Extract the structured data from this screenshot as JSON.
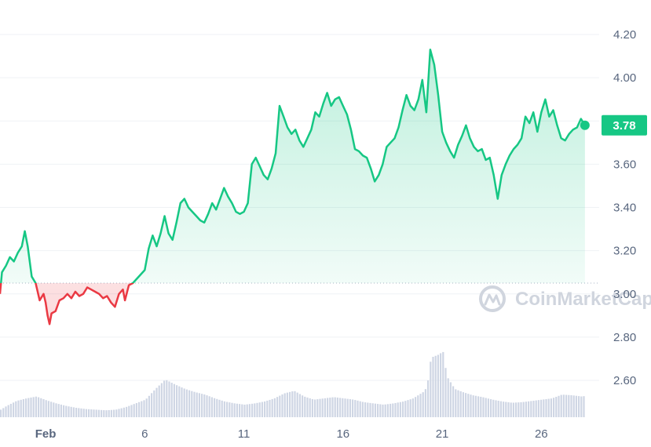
{
  "chart_data": {
    "type": "area",
    "watermark": "CoinMarketCap",
    "current_price_label": "3.78",
    "baseline": 3.05,
    "ylim": [
      2.45,
      4.3
    ],
    "y_ticks": [
      "4.20",
      "4.00",
      "3.80",
      "3.60",
      "3.40",
      "3.20",
      "3.00",
      "2.80",
      "2.60"
    ],
    "y_tick_values": [
      4.2,
      4.0,
      3.8,
      3.6,
      3.4,
      3.2,
      3.0,
      2.8,
      2.6
    ],
    "x_ticks": [
      "Feb",
      "6",
      "11",
      "16",
      "21",
      "26"
    ],
    "x_tick_days": [
      1,
      6,
      11,
      16,
      21,
      26
    ],
    "x_range_days": [
      -1.3,
      28.8
    ],
    "colors": {
      "up": "#16c784",
      "down": "#ea3943",
      "volume": "#cfd6e4",
      "dot": "#16c784"
    },
    "price_series": [
      [
        -1.3,
        3.0
      ],
      [
        -1.2,
        3.1
      ],
      [
        -1.0,
        3.13
      ],
      [
        -0.8,
        3.17
      ],
      [
        -0.6,
        3.15
      ],
      [
        -0.4,
        3.19
      ],
      [
        -0.2,
        3.22
      ],
      [
        -0.05,
        3.29
      ],
      [
        0.1,
        3.22
      ],
      [
        0.3,
        3.08
      ],
      [
        0.5,
        3.05
      ],
      [
        0.7,
        2.97
      ],
      [
        0.9,
        3.0
      ],
      [
        1.0,
        2.96
      ],
      [
        1.1,
        2.9
      ],
      [
        1.2,
        2.86
      ],
      [
        1.3,
        2.91
      ],
      [
        1.5,
        2.92
      ],
      [
        1.7,
        2.97
      ],
      [
        1.9,
        2.98
      ],
      [
        2.1,
        3.0
      ],
      [
        2.3,
        2.98
      ],
      [
        2.5,
        3.01
      ],
      [
        2.7,
        2.99
      ],
      [
        2.9,
        3.0
      ],
      [
        3.1,
        3.03
      ],
      [
        3.3,
        3.02
      ],
      [
        3.5,
        3.01
      ],
      [
        3.7,
        3.0
      ],
      [
        3.9,
        2.98
      ],
      [
        4.1,
        2.99
      ],
      [
        4.3,
        2.96
      ],
      [
        4.5,
        2.94
      ],
      [
        4.7,
        3.0
      ],
      [
        4.9,
        3.02
      ],
      [
        5.0,
        2.97
      ],
      [
        5.2,
        3.04
      ],
      [
        5.4,
        3.05
      ],
      [
        5.6,
        3.07
      ],
      [
        5.8,
        3.09
      ],
      [
        6.0,
        3.11
      ],
      [
        6.2,
        3.21
      ],
      [
        6.4,
        3.27
      ],
      [
        6.6,
        3.22
      ],
      [
        6.8,
        3.28
      ],
      [
        7.0,
        3.36
      ],
      [
        7.2,
        3.28
      ],
      [
        7.4,
        3.25
      ],
      [
        7.6,
        3.33
      ],
      [
        7.8,
        3.42
      ],
      [
        8.0,
        3.44
      ],
      [
        8.2,
        3.4
      ],
      [
        8.4,
        3.38
      ],
      [
        8.6,
        3.36
      ],
      [
        8.8,
        3.34
      ],
      [
        9.0,
        3.33
      ],
      [
        9.2,
        3.37
      ],
      [
        9.4,
        3.42
      ],
      [
        9.6,
        3.39
      ],
      [
        9.8,
        3.44
      ],
      [
        10.0,
        3.49
      ],
      [
        10.2,
        3.45
      ],
      [
        10.4,
        3.42
      ],
      [
        10.6,
        3.38
      ],
      [
        10.8,
        3.37
      ],
      [
        11.0,
        3.38
      ],
      [
        11.2,
        3.42
      ],
      [
        11.4,
        3.6
      ],
      [
        11.6,
        3.63
      ],
      [
        11.8,
        3.59
      ],
      [
        12.0,
        3.55
      ],
      [
        12.2,
        3.53
      ],
      [
        12.4,
        3.58
      ],
      [
        12.6,
        3.65
      ],
      [
        12.8,
        3.87
      ],
      [
        13.0,
        3.82
      ],
      [
        13.2,
        3.77
      ],
      [
        13.4,
        3.74
      ],
      [
        13.6,
        3.76
      ],
      [
        13.8,
        3.71
      ],
      [
        14.0,
        3.68
      ],
      [
        14.2,
        3.72
      ],
      [
        14.4,
        3.76
      ],
      [
        14.6,
        3.84
      ],
      [
        14.8,
        3.82
      ],
      [
        15.0,
        3.88
      ],
      [
        15.2,
        3.93
      ],
      [
        15.4,
        3.87
      ],
      [
        15.6,
        3.9
      ],
      [
        15.8,
        3.91
      ],
      [
        16.0,
        3.87
      ],
      [
        16.2,
        3.83
      ],
      [
        16.4,
        3.76
      ],
      [
        16.6,
        3.67
      ],
      [
        16.8,
        3.66
      ],
      [
        17.0,
        3.64
      ],
      [
        17.2,
        3.63
      ],
      [
        17.4,
        3.58
      ],
      [
        17.6,
        3.52
      ],
      [
        17.8,
        3.55
      ],
      [
        18.0,
        3.6
      ],
      [
        18.2,
        3.68
      ],
      [
        18.4,
        3.7
      ],
      [
        18.6,
        3.72
      ],
      [
        18.8,
        3.77
      ],
      [
        19.0,
        3.85
      ],
      [
        19.2,
        3.92
      ],
      [
        19.4,
        3.87
      ],
      [
        19.6,
        3.85
      ],
      [
        19.8,
        3.9
      ],
      [
        20.0,
        3.99
      ],
      [
        20.2,
        3.84
      ],
      [
        20.4,
        4.13
      ],
      [
        20.6,
        4.06
      ],
      [
        20.8,
        3.92
      ],
      [
        21.0,
        3.75
      ],
      [
        21.2,
        3.7
      ],
      [
        21.4,
        3.66
      ],
      [
        21.6,
        3.63
      ],
      [
        21.8,
        3.69
      ],
      [
        22.0,
        3.73
      ],
      [
        22.2,
        3.78
      ],
      [
        22.4,
        3.72
      ],
      [
        22.6,
        3.68
      ],
      [
        22.8,
        3.66
      ],
      [
        23.0,
        3.67
      ],
      [
        23.2,
        3.62
      ],
      [
        23.4,
        3.63
      ],
      [
        23.6,
        3.55
      ],
      [
        23.8,
        3.44
      ],
      [
        24.0,
        3.55
      ],
      [
        24.2,
        3.6
      ],
      [
        24.4,
        3.64
      ],
      [
        24.6,
        3.67
      ],
      [
        24.8,
        3.69
      ],
      [
        25.0,
        3.72
      ],
      [
        25.2,
        3.82
      ],
      [
        25.4,
        3.79
      ],
      [
        25.6,
        3.84
      ],
      [
        25.8,
        3.75
      ],
      [
        26.0,
        3.84
      ],
      [
        26.2,
        3.9
      ],
      [
        26.4,
        3.82
      ],
      [
        26.6,
        3.85
      ],
      [
        26.8,
        3.78
      ],
      [
        27.0,
        3.72
      ],
      [
        27.2,
        3.71
      ],
      [
        27.4,
        3.74
      ],
      [
        27.6,
        3.76
      ],
      [
        27.8,
        3.77
      ],
      [
        28.0,
        3.81
      ],
      [
        28.2,
        3.78
      ]
    ],
    "volume_series": [
      [
        -1.3,
        0.12
      ],
      [
        -1.0,
        0.18
      ],
      [
        -0.5,
        0.26
      ],
      [
        0.0,
        0.3
      ],
      [
        0.5,
        0.33
      ],
      [
        1.0,
        0.27
      ],
      [
        1.5,
        0.22
      ],
      [
        2.0,
        0.18
      ],
      [
        2.5,
        0.15
      ],
      [
        3.0,
        0.13
      ],
      [
        3.5,
        0.12
      ],
      [
        4.0,
        0.11
      ],
      [
        4.5,
        0.12
      ],
      [
        5.0,
        0.16
      ],
      [
        5.5,
        0.22
      ],
      [
        6.0,
        0.28
      ],
      [
        6.5,
        0.45
      ],
      [
        7.0,
        0.6
      ],
      [
        7.5,
        0.52
      ],
      [
        8.0,
        0.45
      ],
      [
        8.5,
        0.4
      ],
      [
        9.0,
        0.36
      ],
      [
        9.5,
        0.3
      ],
      [
        10.0,
        0.25
      ],
      [
        10.5,
        0.22
      ],
      [
        11.0,
        0.2
      ],
      [
        11.5,
        0.22
      ],
      [
        12.0,
        0.25
      ],
      [
        12.5,
        0.3
      ],
      [
        13.0,
        0.38
      ],
      [
        13.5,
        0.42
      ],
      [
        14.0,
        0.33
      ],
      [
        14.5,
        0.28
      ],
      [
        15.0,
        0.3
      ],
      [
        15.5,
        0.32
      ],
      [
        16.0,
        0.3
      ],
      [
        16.5,
        0.28
      ],
      [
        17.0,
        0.24
      ],
      [
        17.5,
        0.22
      ],
      [
        18.0,
        0.2
      ],
      [
        18.5,
        0.22
      ],
      [
        19.0,
        0.25
      ],
      [
        19.5,
        0.3
      ],
      [
        20.0,
        0.4
      ],
      [
        20.2,
        0.48
      ],
      [
        20.4,
        0.95
      ],
      [
        20.8,
        1.0
      ],
      [
        21.0,
        1.05
      ],
      [
        21.2,
        0.65
      ],
      [
        21.6,
        0.45
      ],
      [
        22.0,
        0.4
      ],
      [
        22.5,
        0.35
      ],
      [
        23.0,
        0.32
      ],
      [
        23.5,
        0.28
      ],
      [
        24.0,
        0.25
      ],
      [
        24.5,
        0.23
      ],
      [
        25.0,
        0.24
      ],
      [
        25.5,
        0.26
      ],
      [
        26.0,
        0.28
      ],
      [
        26.5,
        0.3
      ],
      [
        27.0,
        0.36
      ],
      [
        27.5,
        0.35
      ],
      [
        28.0,
        0.33
      ],
      [
        28.2,
        0.34
      ]
    ]
  }
}
